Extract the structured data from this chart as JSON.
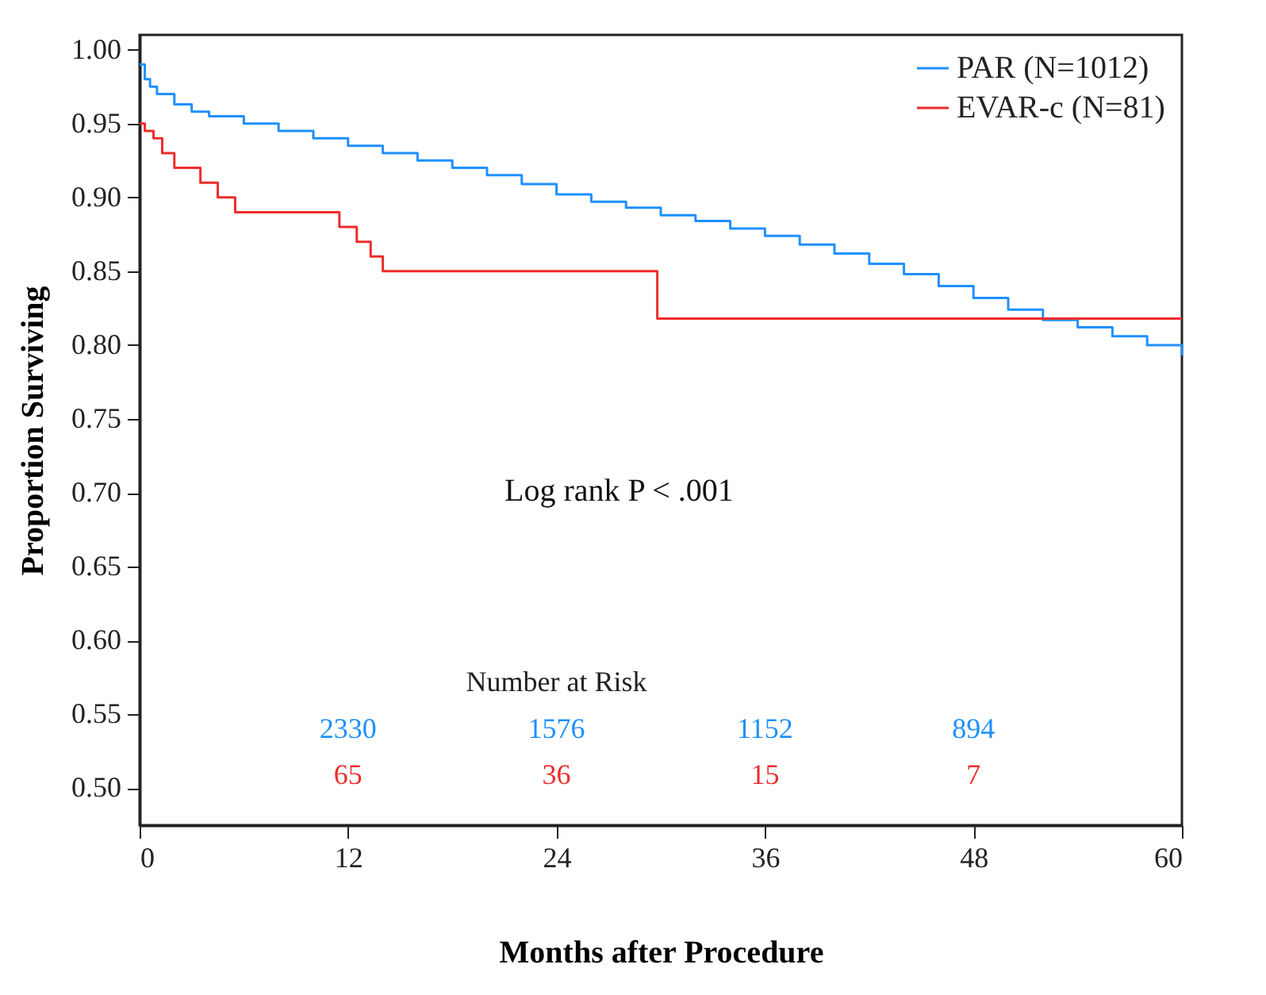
{
  "chart_data": {
    "type": "step",
    "xlabel": "Months after Procedure",
    "ylabel": "Proportion Surviving",
    "xlim": [
      0,
      60
    ],
    "xticks": [
      0,
      12,
      24,
      36,
      48,
      60
    ],
    "ylim": [
      0.475,
      1.01
    ],
    "yticks": [
      {
        "value": 0.5,
        "label": "0.50"
      },
      {
        "value": 0.55,
        "label": "0.55"
      },
      {
        "value": 0.6,
        "label": "0.60"
      },
      {
        "value": 0.65,
        "label": "0.65"
      },
      {
        "value": 0.7,
        "label": "0.70"
      },
      {
        "value": 0.75,
        "label": "0.75"
      },
      {
        "value": 0.8,
        "label": "0.80"
      },
      {
        "value": 0.85,
        "label": "0.85"
      },
      {
        "value": 0.9,
        "label": "0.90"
      },
      {
        "value": 0.95,
        "label": "0.95"
      },
      {
        "value": 1.0,
        "label": "1.00"
      }
    ],
    "grid": false,
    "legend": "top right",
    "line_style": "solid",
    "series": [
      {
        "name": "PAR (N=1012)",
        "color": "#1e90ff",
        "x": [
          0,
          0.3,
          0.6,
          1,
          2,
          3,
          4,
          6,
          8,
          10,
          12,
          14,
          16,
          18,
          20,
          22,
          24,
          26,
          28,
          30,
          32,
          34,
          36,
          38,
          40,
          42,
          44,
          46,
          48,
          50,
          52,
          54,
          56,
          58,
          60
        ],
        "values": [
          0.99,
          0.98,
          0.975,
          0.97,
          0.963,
          0.958,
          0.955,
          0.95,
          0.945,
          0.94,
          0.935,
          0.93,
          0.925,
          0.92,
          0.915,
          0.909,
          0.902,
          0.897,
          0.893,
          0.888,
          0.884,
          0.879,
          0.874,
          0.868,
          0.862,
          0.855,
          0.848,
          0.84,
          0.832,
          0.824,
          0.817,
          0.812,
          0.806,
          0.8,
          0.793
        ]
      },
      {
        "name": "EVAR-c (N=81)",
        "color": "#ee2c2c",
        "x": [
          0,
          0.3,
          0.8,
          1.3,
          2,
          3.5,
          4.5,
          5.5,
          11,
          11.5,
          12.5,
          13.3,
          14,
          29.8,
          60
        ],
        "values": [
          0.95,
          0.945,
          0.94,
          0.93,
          0.92,
          0.91,
          0.9,
          0.89,
          0.89,
          0.88,
          0.87,
          0.86,
          0.85,
          0.818,
          0.818
        ]
      }
    ],
    "annotations": [
      "Log rank P < .001",
      "Number at Risk",
      "2330",
      "1576",
      "1152",
      "894",
      "65",
      "36",
      "15",
      "7"
    ]
  }
}
